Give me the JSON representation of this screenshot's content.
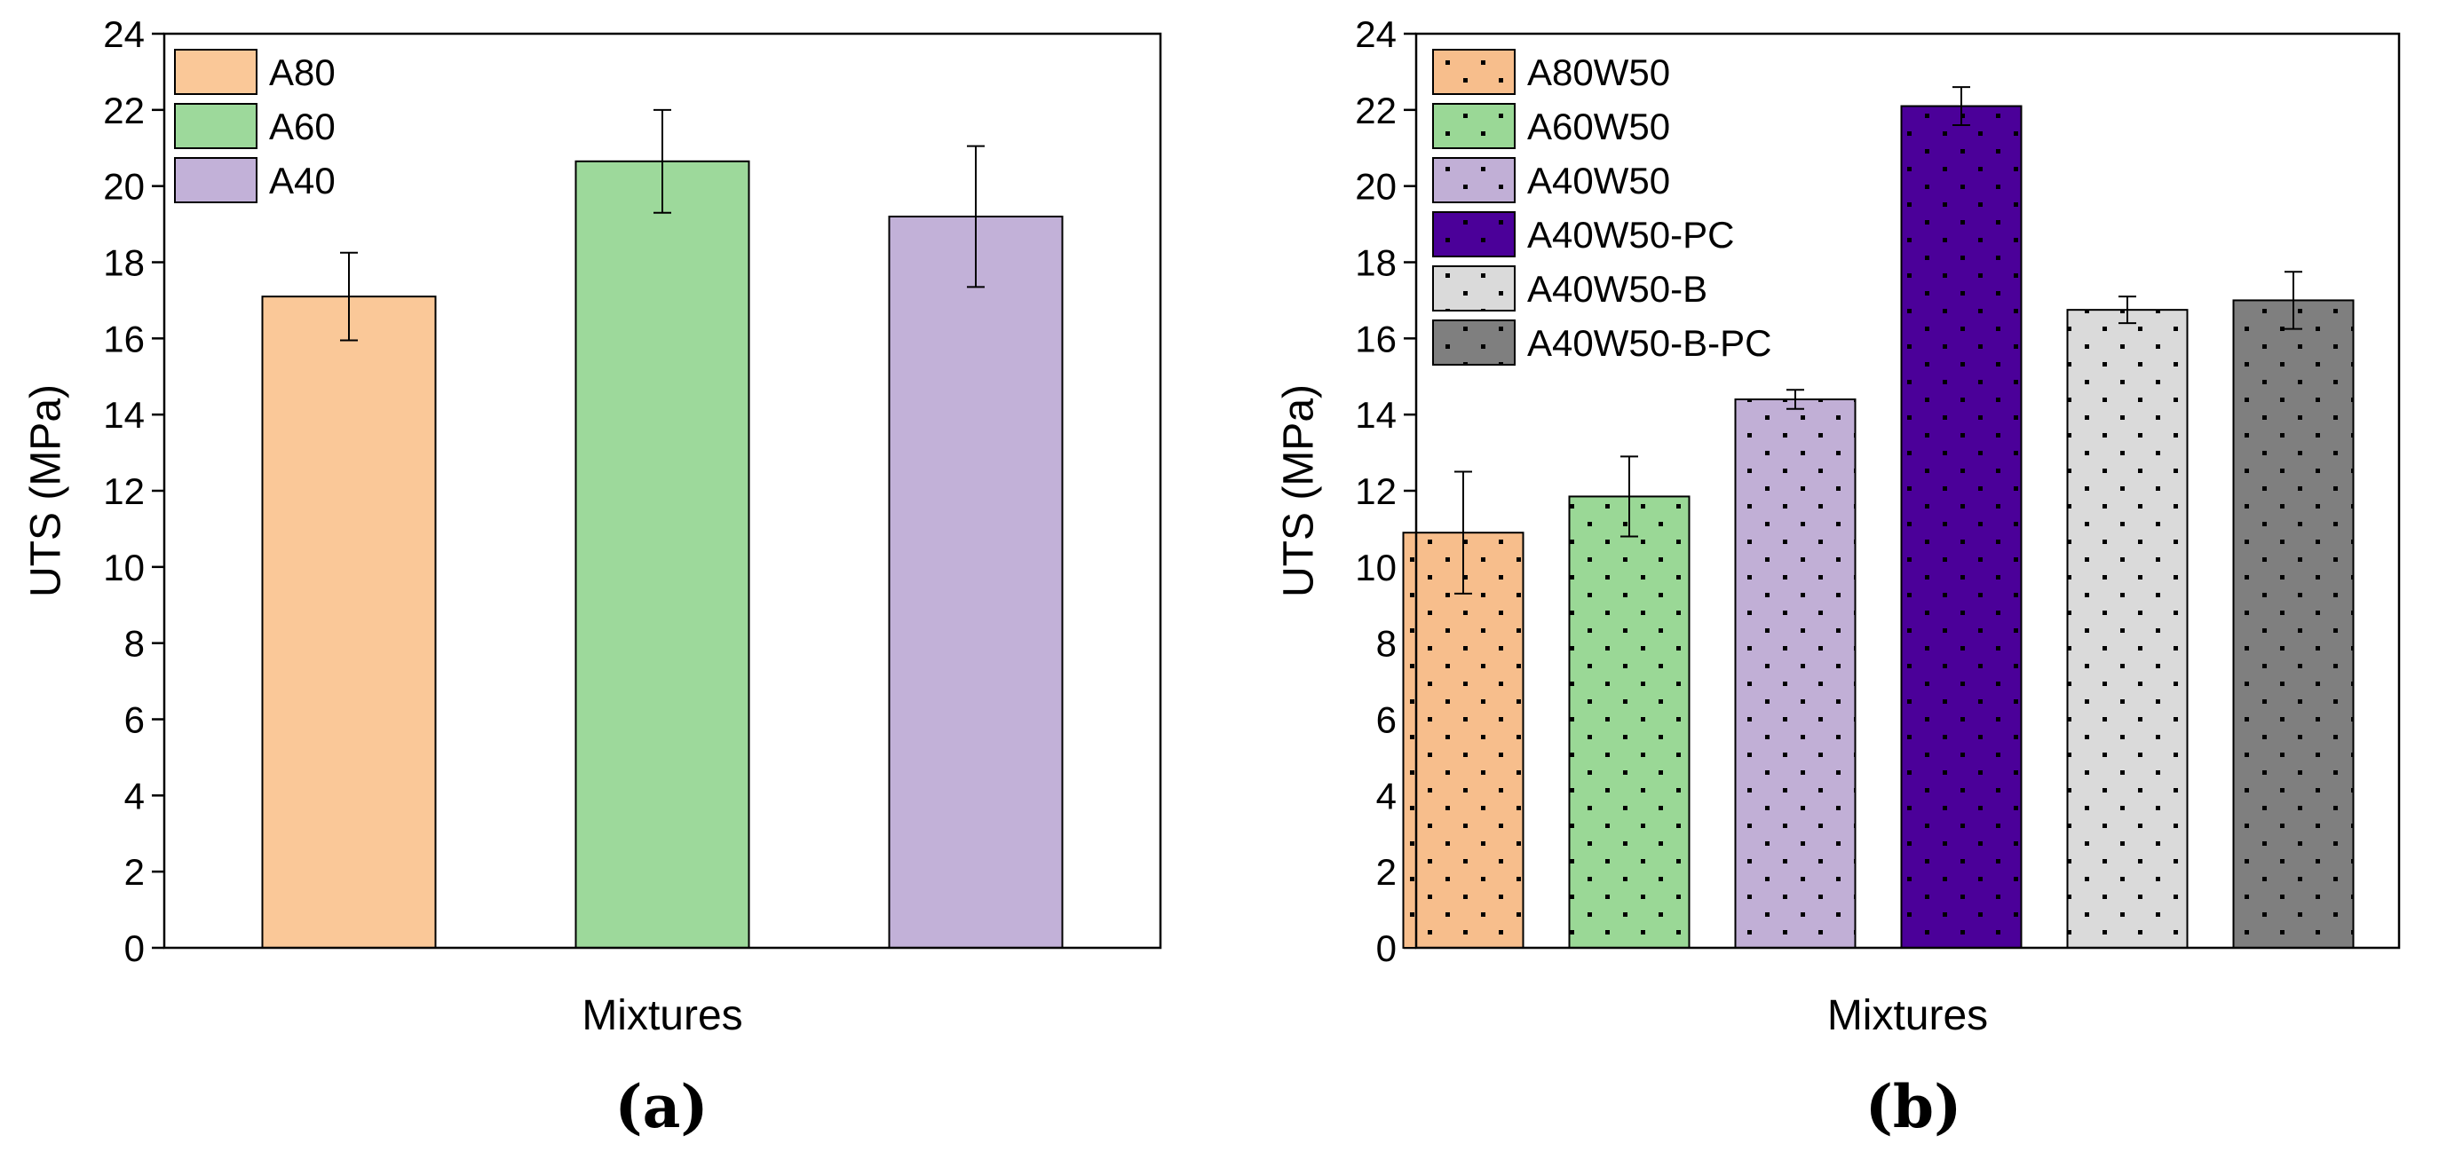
{
  "chart_data": [
    {
      "type": "bar",
      "panel": "(a)",
      "categories": [
        "A80",
        "A60",
        "A40"
      ],
      "values": [
        17.1,
        20.65,
        19.2
      ],
      "errors": [
        1.15,
        1.35,
        1.85
      ],
      "colors": [
        "#FAC898",
        "#9DD99B",
        "#C2B1D8"
      ],
      "pattern": "none",
      "legend": [
        "A80",
        "A60",
        "A40"
      ],
      "legend_position": "top-left",
      "xlabel": "Mixtures",
      "ylabel": "UTS (MPa)",
      "ylim": [
        0,
        24
      ],
      "yticks": [
        "0",
        "2",
        "4",
        "6",
        "8",
        "10",
        "12",
        "14",
        "16",
        "18",
        "20",
        "22",
        "24"
      ],
      "grid": false
    },
    {
      "type": "bar",
      "panel": "(b)",
      "categories": [
        "A80W50",
        "A60W50",
        "A40W50",
        "A40W50-PC",
        "A40W50-B",
        "A40W50-B-PC"
      ],
      "values": [
        10.9,
        11.85,
        14.4,
        22.1,
        16.75,
        17.0
      ],
      "errors": [
        1.6,
        1.05,
        0.25,
        0.5,
        0.35,
        0.75
      ],
      "colors": [
        "#F7BE8C",
        "#9AD896",
        "#C1AFD6",
        "#4B0099",
        "#DADADA",
        "#7F7F7F"
      ],
      "pattern": "dots",
      "legend": [
        "A80W50",
        "A60W50",
        "A40W50",
        "A40W50-PC",
        "A40W50-B",
        "A40W50-B-PC"
      ],
      "legend_position": "top-left",
      "xlabel": "Mixtures",
      "ylabel": "UTS (MPa)",
      "ylim": [
        0,
        24
      ],
      "yticks": [
        "0",
        "2",
        "4",
        "6",
        "8",
        "10",
        "12",
        "14",
        "16",
        "18",
        "20",
        "22",
        "24"
      ],
      "grid": false
    }
  ]
}
